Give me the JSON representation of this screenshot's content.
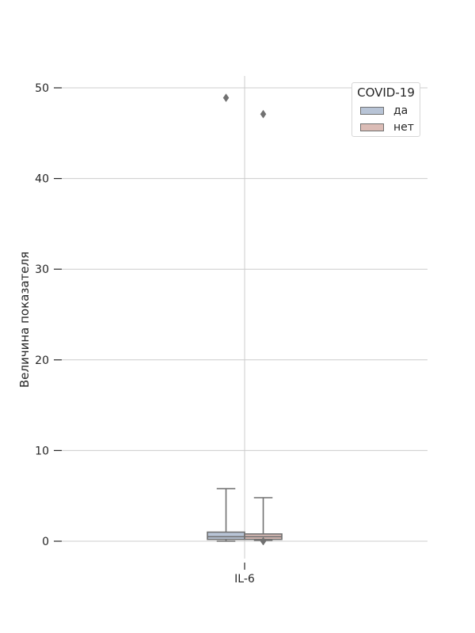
{
  "chart_data": {
    "type": "box",
    "title": "",
    "xlabel": "",
    "ylabel": "Величина показателя",
    "categories": [
      "IL-6"
    ],
    "ylim": [
      -3,
      51.5
    ],
    "yticks": [
      0,
      10,
      20,
      30,
      40,
      50
    ],
    "grid": true,
    "legend": {
      "title": "COVID-19",
      "position": "top-right"
    },
    "series": [
      {
        "name": "да",
        "color": "#b8c4d6",
        "boxes": [
          {
            "category": "IL-6",
            "whisker_low": 0.0,
            "q1": 0.2,
            "median": 0.5,
            "q3": 1.0,
            "whisker_high": 5.8,
            "outliers": [
              48.9
            ]
          }
        ]
      },
      {
        "name": "нет",
        "color": "#dbbcb6",
        "boxes": [
          {
            "category": "IL-6",
            "whisker_low": 0.1,
            "q1": 0.2,
            "median": 0.5,
            "q3": 0.8,
            "whisker_high": 4.8,
            "outliers": [
              0.0,
              47.1
            ]
          }
        ]
      }
    ],
    "style": {
      "grid_color": "#cccccc",
      "line_color": "#717171",
      "text_color": "#262626"
    }
  }
}
